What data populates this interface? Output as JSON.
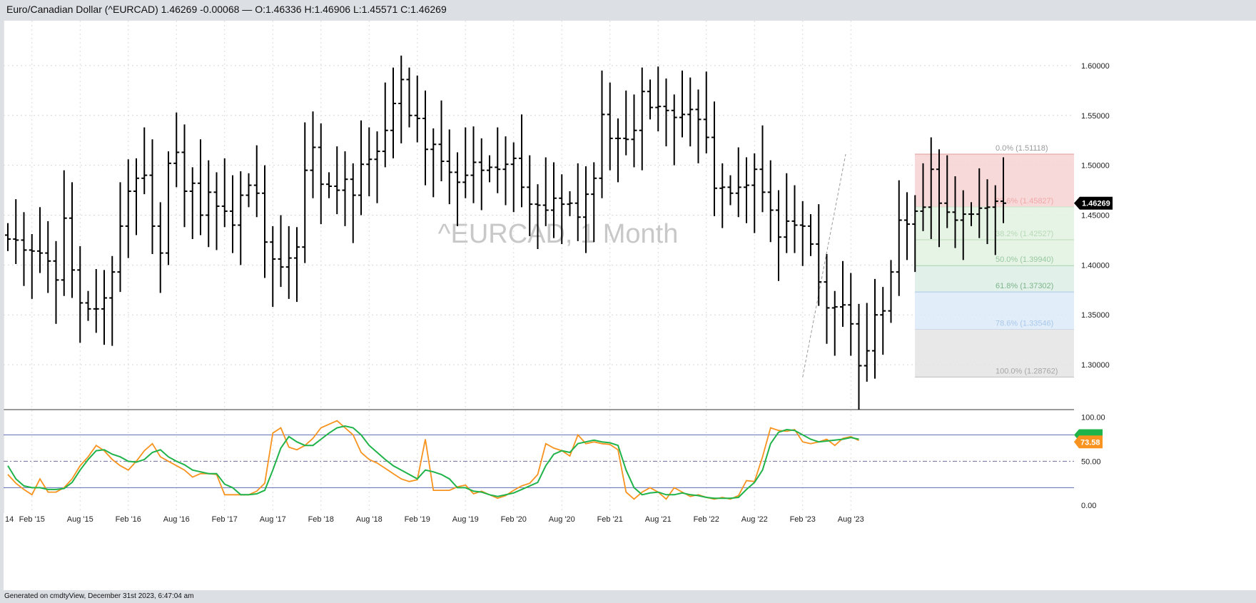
{
  "header": {
    "title": "Euro/Canadian Dollar (^EURCAD) 1.46269 -0.00068 — O:1.46336 H:1.46906 L:1.45571 C:1.46269"
  },
  "watermark": "^EURCAD, 1 Month",
  "footer": "Generated on cmdtyView, December 31st 2023, 6:47:04 am",
  "colors": {
    "bars": "#000000",
    "stoch_k": "#f7931e",
    "stoch_d": "#1fb34a",
    "fib_red": "#f6d2d2",
    "fib_green": "#e2f2e2",
    "fib_teal": "#dcefe6",
    "fib_blue": "#dceaf8",
    "fib_gray": "#e4e4e4",
    "price_tag_bg": "#000000",
    "k_tag_bg": "#f7931e",
    "d_tag_bg": "#1fb34a"
  },
  "chart_data": [
    {
      "type": "ohlc",
      "x_tick_labels": [
        "14",
        "Feb '15",
        "Aug '15",
        "Feb '16",
        "Aug '16",
        "Feb '17",
        "Aug '17",
        "Feb '18",
        "Aug '18",
        "Feb '19",
        "Aug '19",
        "Feb '20",
        "Aug '20",
        "Feb '21",
        "Aug '21",
        "Feb '22",
        "Aug '22",
        "Feb '23",
        "Aug '23"
      ],
      "y_tick_labels": [
        "1.30000",
        "1.35000",
        "1.40000",
        "1.45000",
        "1.50000",
        "1.55000",
        "1.60000"
      ],
      "ylim": [
        1.255,
        1.645
      ],
      "last_price_label": "1.46269",
      "close": [
        1.426,
        1.425,
        1.415,
        1.414,
        1.412,
        1.404,
        1.385,
        1.447,
        1.395,
        1.362,
        1.356,
        1.356,
        1.367,
        1.393,
        1.439,
        1.474,
        1.487,
        1.49,
        1.439,
        1.412,
        1.502,
        1.513,
        1.474,
        1.482,
        1.45,
        1.473,
        1.459,
        1.454,
        1.44,
        1.47,
        1.48,
        1.472,
        1.423,
        1.406,
        1.398,
        1.407,
        1.418,
        1.495,
        1.518,
        1.481,
        1.479,
        1.475,
        1.486,
        1.47,
        1.501,
        1.506,
        1.514,
        1.535,
        1.562,
        1.586,
        1.55,
        1.547,
        1.516,
        1.521,
        1.504,
        1.493,
        1.483,
        1.49,
        1.503,
        1.495,
        1.498,
        1.496,
        1.501,
        1.507,
        1.478,
        1.461,
        1.46,
        1.455,
        1.467,
        1.461,
        1.462,
        1.448,
        1.471,
        1.487,
        1.551,
        1.527,
        1.527,
        1.526,
        1.535,
        1.574,
        1.558,
        1.559,
        1.555,
        1.548,
        1.551,
        1.556,
        1.546,
        1.528,
        1.477,
        1.478,
        1.472,
        1.478,
        1.48,
        1.496,
        1.473,
        1.455,
        1.428,
        1.444,
        1.44,
        1.439,
        1.421,
        1.383,
        1.357,
        1.358,
        1.36,
        1.341,
        1.299,
        1.314,
        1.35,
        1.354,
        1.393,
        1.445,
        1.441,
        1.454,
        1.458,
        1.496,
        1.462,
        1.453,
        1.445,
        1.451,
        1.451,
        1.457,
        1.458,
        1.464,
        1.462
      ],
      "series": [
        {
          "name": "",
          "comment": "open-close ticks per monthly bar"
        }
      ],
      "fibonacci": {
        "levels": [
          {
            "label": "0.0% (1.51118)",
            "value": 1.51118
          },
          {
            "label": "23.6% (1.45827)",
            "value": 1.45827
          },
          {
            "label": "38.2% (1.42527)",
            "value": 1.42527
          },
          {
            "label": "50.0% (1.39940)",
            "value": 1.3994
          },
          {
            "label": "61.8% (1.37302)",
            "value": 1.37302
          },
          {
            "label": "78.6% (1.33546)",
            "value": 1.33546
          },
          {
            "label": "100.0% (1.28762)",
            "value": 1.28762
          }
        ],
        "start_bar": 99,
        "end_bar": 104
      }
    },
    {
      "type": "line",
      "y_tick_labels": [
        "0.00",
        "50.00",
        "100.00"
      ],
      "ylim": [
        -4,
        103
      ],
      "reference_lines": [
        20,
        50,
        80
      ],
      "k_label": "73.58",
      "d_label": "",
      "series": [
        {
          "name": "",
          "values": [
            35,
            25,
            18,
            12,
            30,
            15,
            15,
            20,
            30,
            45,
            55,
            68,
            62,
            52,
            45,
            40,
            50,
            62,
            70,
            55,
            50,
            45,
            40,
            32,
            36,
            36,
            35,
            12,
            12,
            12,
            12,
            16,
            25,
            82,
            88,
            66,
            63,
            68,
            76,
            88,
            92,
            96,
            88,
            80,
            60,
            52,
            48,
            42,
            36,
            30,
            27,
            29,
            75,
            17,
            17,
            17,
            21,
            23,
            13,
            16,
            12,
            8,
            11,
            17,
            22,
            25,
            35,
            70,
            65,
            62,
            56,
            80,
            70,
            72,
            70,
            69,
            63,
            15,
            7,
            15,
            20,
            15,
            7,
            20,
            15,
            10,
            12,
            9,
            7,
            9,
            7,
            11,
            28,
            27,
            55,
            88,
            85,
            84,
            86,
            72,
            70,
            72,
            75,
            68,
            76,
            78,
            73.58
          ]
        },
        {
          "name": "",
          "values": [
            45,
            30,
            22,
            20,
            20,
            18,
            18,
            19,
            26,
            40,
            52,
            62,
            63,
            58,
            55,
            50,
            49,
            52,
            60,
            63,
            55,
            50,
            46,
            40,
            38,
            36,
            36,
            24,
            20,
            12,
            12,
            13,
            17,
            40,
            65,
            78,
            72,
            68,
            68,
            75,
            82,
            88,
            90,
            88,
            80,
            68,
            60,
            52,
            45,
            40,
            35,
            30,
            40,
            38,
            35,
            30,
            20,
            20,
            16,
            15,
            12,
            10,
            12,
            14,
            18,
            22,
            26,
            45,
            58,
            62,
            60,
            70,
            72,
            74,
            72,
            71,
            68,
            40,
            20,
            12,
            14,
            15,
            12,
            12,
            14,
            12,
            11,
            9,
            8,
            8,
            8,
            9,
            18,
            26,
            40,
            70,
            83,
            86,
            85,
            80,
            75,
            72,
            73,
            74,
            75,
            77,
            75
          ]
        }
      ]
    }
  ]
}
